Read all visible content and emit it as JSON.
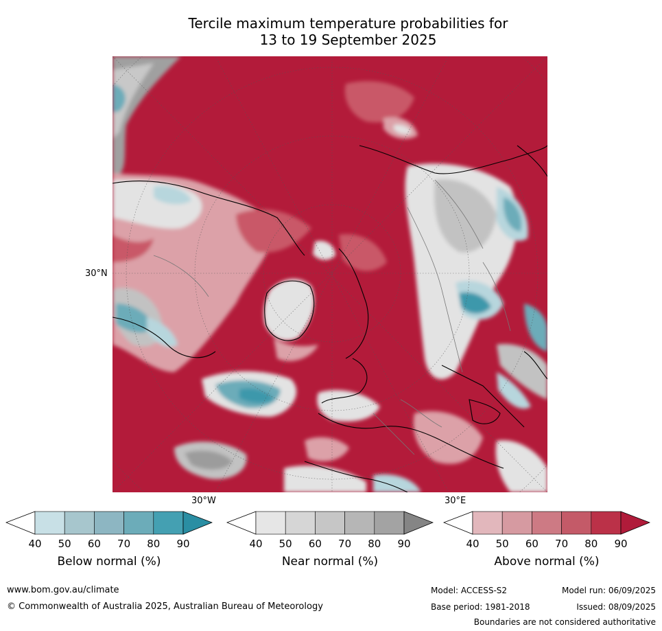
{
  "title_line1": "Tercile maximum temperature probabilities for",
  "title_line2": "13 to 19 September 2025",
  "map_labels": {
    "lat_30n": "30°N",
    "lon_30w": "30°W",
    "lon_30e": "30°E"
  },
  "colorbars": [
    {
      "name": "Below normal (%)",
      "ticks": [
        "40",
        "50",
        "60",
        "70",
        "80",
        "90"
      ],
      "colors": [
        "#ffffff",
        "#c8e0e6",
        "#a7c6cd",
        "#8db6c2",
        "#6cacb9",
        "#44a0b2",
        "#2a8ea3"
      ]
    },
    {
      "name": "Near normal (%)",
      "ticks": [
        "40",
        "50",
        "60",
        "70",
        "80",
        "90"
      ],
      "colors": [
        "#ffffff",
        "#e6e6e6",
        "#d6d6d6",
        "#c6c6c6",
        "#b6b6b6",
        "#a3a3a3",
        "#858585"
      ]
    },
    {
      "name": "Above normal (%)",
      "ticks": [
        "40",
        "50",
        "60",
        "70",
        "80",
        "90"
      ],
      "colors": [
        "#ffffff",
        "#e2b7bc",
        "#d69aa1",
        "#cd7a84",
        "#c45a68",
        "#bb3148",
        "#b01b3a"
      ]
    }
  ],
  "footer": {
    "url": "www.bom.gov.au/climate",
    "copyright": "© Commonwealth of Australia 2025, Australian Bureau of Meteorology",
    "model": "Model: ACCESS-S2",
    "model_run": "Model run: 06/09/2025",
    "base_period": "Base period: 1981-2018",
    "issued": "Issued: 08/09/2025",
    "disclaimer": "Boundaries are not considered authoritative"
  },
  "palette": {
    "above_strong": "#b31b3a",
    "above_mid": "#c95867",
    "above_light": "#dca1a8",
    "near_light": "#e3e3e3",
    "near_mid": "#c2c2c2",
    "near_dark": "#9c9c9c",
    "below_light": "#b7d6dd",
    "below_mid": "#6cacb9",
    "below_dark": "#3e98ab"
  }
}
